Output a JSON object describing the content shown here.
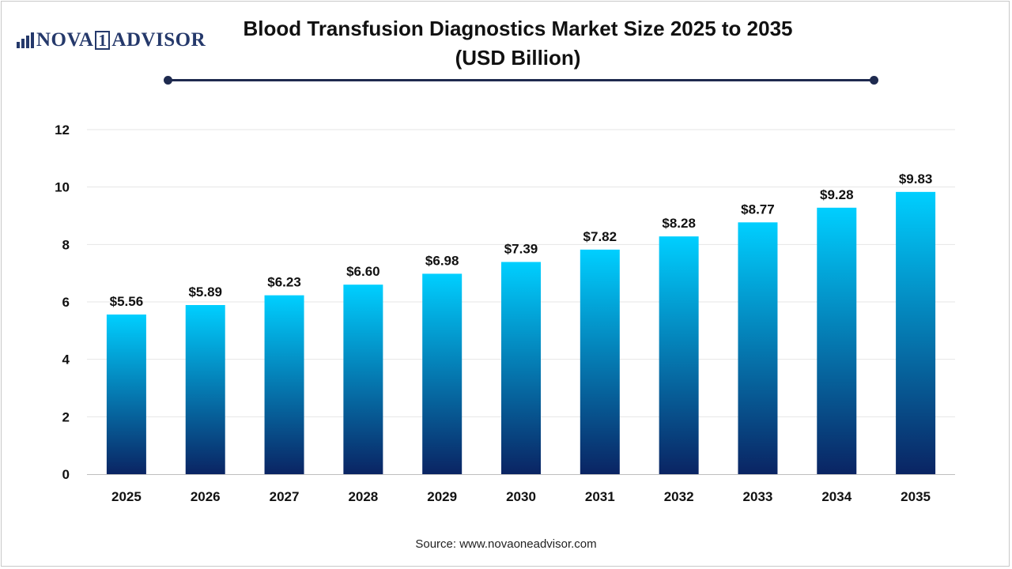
{
  "brand": {
    "name_left": "NOVA",
    "name_box": "1",
    "name_right": "ADVISOR",
    "icon": "bar-chart-icon"
  },
  "title": {
    "line1": "Blood Transfusion Diagnostics Market Size 2025 to 2035",
    "line2": "(USD Billion)"
  },
  "source": "Source: www.novaoneadvisor.com",
  "colors": {
    "bar_top": "#00cfff",
    "bar_bottom": "#0a2463",
    "title_rule": "#1e2a4f",
    "brand": "#25396b",
    "grid": "#e6e6e6"
  },
  "chart_data": {
    "type": "bar",
    "categories": [
      "2025",
      "2026",
      "2027",
      "2028",
      "2029",
      "2030",
      "2031",
      "2032",
      "2033",
      "2034",
      "2035"
    ],
    "values": [
      5.56,
      5.89,
      6.23,
      6.6,
      6.98,
      7.39,
      7.82,
      8.28,
      8.77,
      9.28,
      9.83
    ],
    "value_labels": [
      "$5.56",
      "$5.89",
      "$6.23",
      "$6.60",
      "$6.98",
      "$7.39",
      "$7.82",
      "$8.28",
      "$8.77",
      "$9.28",
      "$9.83"
    ],
    "y_ticks": [
      0,
      2,
      4,
      6,
      8,
      10,
      12
    ],
    "ylim": [
      0,
      12
    ],
    "title": "Blood Transfusion Diagnostics Market Size 2025 to 2035 (USD Billion)",
    "xlabel": "",
    "ylabel": "",
    "grid": true,
    "legend": "none"
  }
}
